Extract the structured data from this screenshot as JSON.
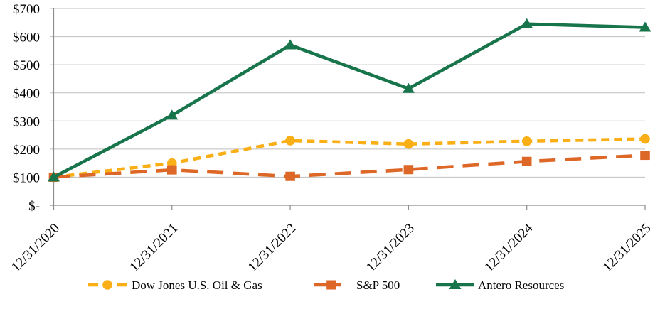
{
  "chart_data": {
    "type": "line",
    "title": "",
    "xlabel": "",
    "ylabel": "",
    "categories": [
      "12/31/2020",
      "12/31/2021",
      "12/31/2022",
      "12/31/2023",
      "12/31/2024",
      "12/31/2025"
    ],
    "series": [
      {
        "name": "Dow Jones U.S. Oil & Gas",
        "values": [
          100,
          150,
          230,
          218,
          228,
          236
        ],
        "color": "#F9AF15",
        "marker": "circle",
        "line_style": "dashed-short"
      },
      {
        "name": "S&P 500",
        "values": [
          100,
          126,
          103,
          127,
          156,
          178
        ],
        "color": "#DD6727",
        "marker": "square",
        "line_style": "dashed-long"
      },
      {
        "name": "Antero Resources",
        "values": [
          100,
          320,
          570,
          415,
          645,
          633
        ],
        "color": "#17744B",
        "marker": "triangle",
        "line_style": "solid"
      }
    ],
    "ylim": [
      0,
      700
    ],
    "ytick_interval": 100,
    "ytick_labels": [
      "$-",
      "$100",
      "$200",
      "$300",
      "$400",
      "$500",
      "$600",
      "$700"
    ],
    "grid": true,
    "legend_position": "bottom",
    "grid_color": "#BFBFBF",
    "axis_color": "#8C8C8C",
    "text_color": "#000000",
    "background_color": "#FFFFFF"
  }
}
